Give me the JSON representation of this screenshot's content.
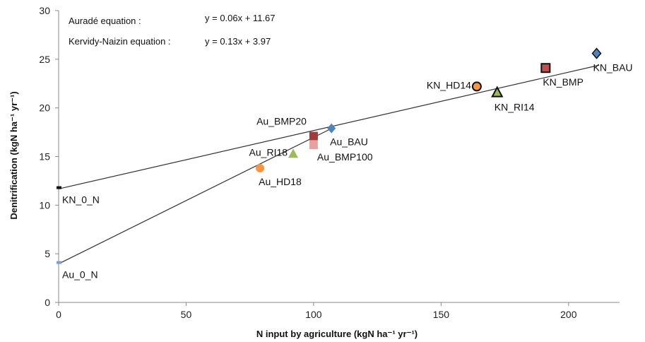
{
  "chart_data": {
    "type": "scatter",
    "title": "",
    "xlabel": "N input by agriculture (kgN ha⁻¹ yr⁻¹)",
    "ylabel": "Denitrification (kgN ha⁻¹ yr⁻¹)",
    "xlim": [
      0,
      220
    ],
    "ylim": [
      0,
      30
    ],
    "xticks": [
      0,
      50,
      100,
      150,
      200
    ],
    "yticks": [
      0,
      5,
      10,
      15,
      20,
      25,
      30
    ],
    "grid": false,
    "equations": [
      {
        "label": "Auradé equation :",
        "text": "y = 0.06x + 11.67"
      },
      {
        "label": "Kervidy-Naizin equation :",
        "text": "y = 0.13x + 3.97"
      }
    ],
    "lines": [
      {
        "slope": 0.06,
        "intercept": 11.67,
        "x_range": [
          0,
          212
        ]
      },
      {
        "slope": 0.13,
        "intercept": 3.97,
        "x_range": [
          0,
          107
        ]
      }
    ],
    "points": [
      {
        "label": "KN_0_N",
        "x": 0,
        "y": 11.8,
        "marker": "dash",
        "color": "#111111",
        "outlined": false,
        "label_pos": "below-right"
      },
      {
        "label": "Au_0_N",
        "x": 0,
        "y": 4.1,
        "marker": "dash",
        "color": "#7f9fcf",
        "outlined": false,
        "label_pos": "below-right"
      },
      {
        "label": "Au_HD18",
        "x": 79,
        "y": 13.8,
        "marker": "circle",
        "color": "#f79646",
        "outlined": false,
        "label_pos": "below"
      },
      {
        "label": "Au_RI18",
        "x": 92,
        "y": 15.3,
        "marker": "triangle",
        "color": "#9bbb59",
        "outlined": false,
        "label_pos": "left"
      },
      {
        "label": "Au_BMP100",
        "x": 100,
        "y": 16.2,
        "marker": "square",
        "color": "#e6a1a1",
        "outlined": false,
        "label_pos": "below-right"
      },
      {
        "label": "Au_BMP20",
        "x": 100,
        "y": 17.1,
        "marker": "square",
        "color": "#a33a3a",
        "outlined": false,
        "label_pos": "upper-left"
      },
      {
        "label": "Au_BAU",
        "x": 107,
        "y": 17.9,
        "marker": "diamond",
        "color": "#4f81bd",
        "outlined": false,
        "label_pos": "below"
      },
      {
        "label": "KN_HD14",
        "x": 164,
        "y": 22.2,
        "marker": "circle",
        "color": "#f79646",
        "outlined": true,
        "label_pos": "left"
      },
      {
        "label": "KN_RI14",
        "x": 172,
        "y": 21.6,
        "marker": "triangle",
        "color": "#9bbb59",
        "outlined": true,
        "label_pos": "below"
      },
      {
        "label": "KN_BMP",
        "x": 191,
        "y": 24.1,
        "marker": "square",
        "color": "#c0504d",
        "outlined": true,
        "label_pos": "below"
      },
      {
        "label": "KN_BAU",
        "x": 211,
        "y": 25.6,
        "marker": "diamond",
        "color": "#4f81bd",
        "outlined": true,
        "label_pos": "below-right"
      }
    ]
  }
}
